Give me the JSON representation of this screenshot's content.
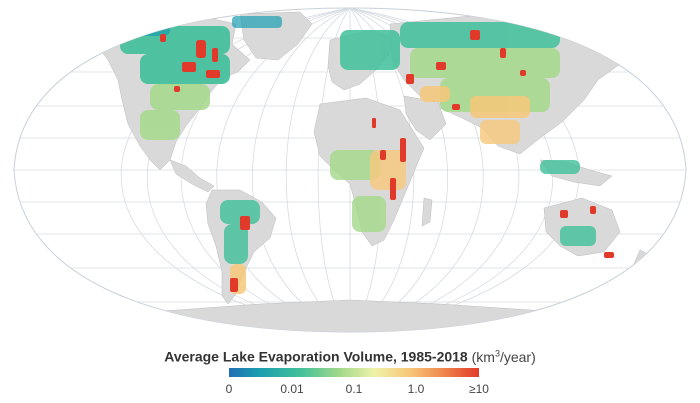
{
  "legend": {
    "title": "Average Lake Evaporation Volume, 1985-2018",
    "unit_prefix": "(km",
    "unit_sup": "3",
    "unit_suffix": "/year)",
    "ticks": [
      "0",
      "0.01",
      "0.1",
      "1.0",
      "≥10"
    ],
    "colors": [
      "#1f6fb4",
      "#1c9fb0",
      "#3fbf9a",
      "#a5d98a",
      "#eef2a8",
      "#f7c87a",
      "#f08a4f",
      "#e23a2a"
    ]
  },
  "map": {
    "projection": "Robinson-like world map",
    "land_color": "#d9d9d9",
    "graticule_color": "#cfd6dd",
    "background": "#ffffff"
  }
}
